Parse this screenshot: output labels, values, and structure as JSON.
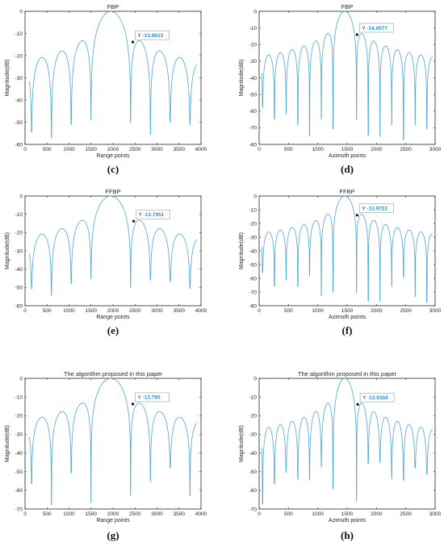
{
  "chart_data": [
    {
      "panel": "(c)",
      "type": "line",
      "title": "FBP",
      "xlabel": "Range points",
      "ylabel": "Magnitude(dB)",
      "xlim": [
        0,
        4000
      ],
      "ylim": [
        -60,
        0
      ],
      "xticks": [
        0,
        500,
        1000,
        1500,
        2000,
        2500,
        3000,
        3500,
        4000
      ],
      "yticks": [
        0,
        -10,
        -20,
        -30,
        -40,
        -50,
        -60
      ],
      "peak_x": 1950,
      "lobe_width": 450,
      "lobe_start": 100,
      "lobe_end": 3900,
      "null_min": -48,
      "null_max": -58,
      "marker": {
        "x": 2450,
        "y": -13.8633,
        "label": "Y",
        "value": "-13.8633"
      },
      "grid": false,
      "color": "#4ea6d8"
    },
    {
      "panel": "(d)",
      "type": "line",
      "title": "FBP",
      "xlabel": "Azimuth points",
      "ylabel": "Magnitude(dB)",
      "xlim": [
        0,
        3000
      ],
      "ylim": [
        -80,
        0
      ],
      "xticks": [
        0,
        500,
        1000,
        1500,
        2000,
        2500,
        3000
      ],
      "yticks": [
        0,
        -10,
        -20,
        -30,
        -40,
        -50,
        -60,
        -70,
        -80
      ],
      "peak_x": 1460,
      "lobe_width": 200,
      "lobe_start": 40,
      "lobe_end": 2960,
      "null_min": -55,
      "null_max": -78,
      "marker": {
        "x": 1670,
        "y": -14.0577,
        "label": "Y",
        "value": "-14.0577"
      },
      "grid": false,
      "color": "#4ea6d8"
    },
    {
      "panel": "(e)",
      "type": "line",
      "title": "FFBP",
      "xlabel": "Range points",
      "ylabel": "Magnitude(dB)",
      "xlim": [
        0,
        4000
      ],
      "ylim": [
        -60,
        0
      ],
      "xticks": [
        0,
        500,
        1000,
        1500,
        2000,
        2500,
        3000,
        3500,
        4000
      ],
      "yticks": [
        0,
        -10,
        -20,
        -30,
        -40,
        -50,
        -60
      ],
      "peak_x": 1950,
      "lobe_width": 450,
      "lobe_start": 100,
      "lobe_end": 3900,
      "null_min": -45,
      "null_max": -55,
      "marker": {
        "x": 2470,
        "y": -13.7951,
        "label": "Y",
        "value": "-13.7951"
      },
      "grid": false,
      "color": "#4ea6d8"
    },
    {
      "panel": "(f)",
      "type": "line",
      "title": "FFBP",
      "xlabel": "Azimuth points",
      "ylabel": "Magnitude(dB)",
      "xlim": [
        0,
        3000
      ],
      "ylim": [
        -80,
        0
      ],
      "xticks": [
        0,
        500,
        1000,
        1500,
        2000,
        2500,
        3000
      ],
      "yticks": [
        0,
        -10,
        -20,
        -30,
        -40,
        -50,
        -60,
        -70,
        -80
      ],
      "peak_x": 1460,
      "lobe_width": 200,
      "lobe_start": 40,
      "lobe_end": 2960,
      "null_min": -55,
      "null_max": -78,
      "marker": {
        "x": 1670,
        "y": -13.9722,
        "label": "Y",
        "value": "-13.9722"
      },
      "grid": false,
      "color": "#4ea6d8"
    },
    {
      "panel": "(g)",
      "type": "line",
      "title": "The algorithm proposed in this paper",
      "xlabel": "Range points",
      "ylabel": "Magnitude(dB)",
      "xlim": [
        0,
        4000
      ],
      "ylim": [
        -70,
        0
      ],
      "xticks": [
        0,
        500,
        1000,
        1500,
        2000,
        2500,
        3000,
        3500,
        4000
      ],
      "yticks": [
        0,
        -10,
        -20,
        -30,
        -40,
        -50,
        -60,
        -70
      ],
      "peak_x": 1950,
      "lobe_width": 450,
      "lobe_start": 100,
      "lobe_end": 3900,
      "null_min": -45,
      "null_max": -68,
      "marker": {
        "x": 2450,
        "y": -13.785,
        "label": "Y",
        "value": "-13.785"
      },
      "grid": false,
      "color": "#4ea6d8"
    },
    {
      "panel": "(h)",
      "type": "line",
      "title": "The algorithm proposed in this paper",
      "xlabel": "Azimuth points",
      "ylabel": "Magnitude(dB)",
      "xlim": [
        0,
        3000
      ],
      "ylim": [
        -70,
        0
      ],
      "xticks": [
        0,
        500,
        1000,
        1500,
        2000,
        2500,
        3000
      ],
      "yticks": [
        0,
        -10,
        -20,
        -30,
        -40,
        -50,
        -60,
        -70
      ],
      "peak_x": 1460,
      "lobe_width": 200,
      "lobe_start": 40,
      "lobe_end": 2960,
      "null_min": -45,
      "null_max": -68,
      "marker": {
        "x": 1680,
        "y": -13.9359,
        "label": "Y",
        "value": "-13.9359"
      },
      "grid": false,
      "color": "#4ea6d8"
    }
  ]
}
